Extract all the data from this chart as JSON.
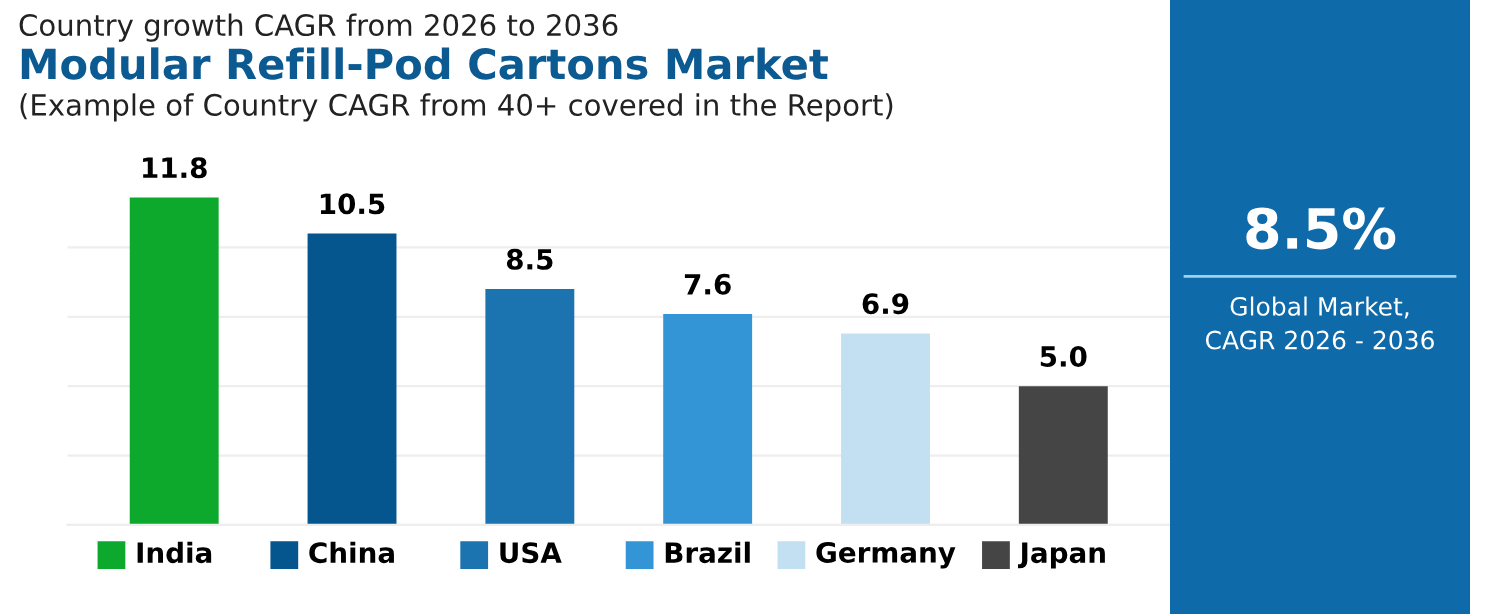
{
  "chart_data": [
    {
      "type": "bar",
      "subtitle": "Country growth CAGR from 2026 to 2036",
      "title": "Modular Refill-Pod Cartons Market",
      "annotations": [
        "(Example of Country CAGR from 40+ covered in the Report)"
      ],
      "categories": [
        "India",
        "China",
        "USA",
        "Brazil",
        "Germany",
        "Japan"
      ],
      "values": [
        11.8,
        10.5,
        8.5,
        7.6,
        6.9,
        5.0
      ],
      "colors": [
        "#0ca92c",
        "#05568f",
        "#1b74b0",
        "#3394d6",
        "#c3e0f2",
        "#454545"
      ],
      "value_labels": [
        "11.8",
        "10.5",
        "8.5",
        "7.6",
        "6.9",
        "5.0"
      ],
      "grid": "y",
      "tick_labels": "x"
    },
    {
      "type": "other",
      "title": "8.5%",
      "subtitle": "Global Market,\nCAGR 2026 - 2036"
    }
  ]
}
